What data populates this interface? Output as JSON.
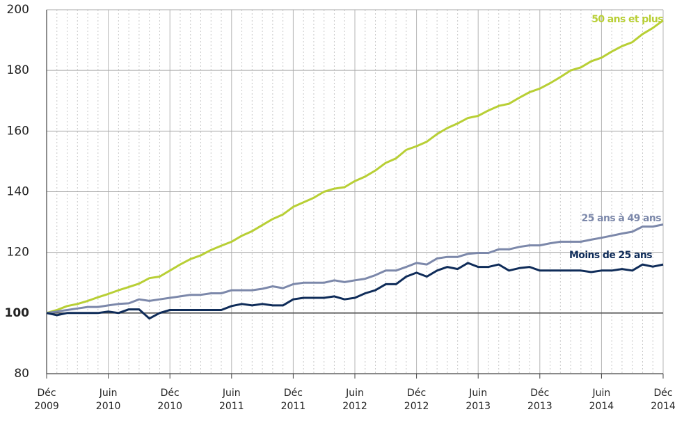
{
  "chart_data": {
    "type": "line",
    "categories": [
      "Déc 2009",
      null,
      null,
      null,
      null,
      null,
      "Juin 2010",
      null,
      null,
      null,
      null,
      null,
      "Déc 2010",
      null,
      null,
      null,
      null,
      null,
      "Juin 2011",
      null,
      null,
      null,
      null,
      null,
      "Déc 2011",
      null,
      null,
      null,
      null,
      null,
      "Juin 2012",
      null,
      null,
      null,
      null,
      null,
      "Déc 2012",
      null,
      null,
      null,
      null,
      null,
      "Juin 2013",
      null,
      null,
      null,
      null,
      null,
      "Déc 2013",
      null,
      null,
      null,
      null,
      null,
      "Juin 2014",
      null,
      null,
      null,
      null,
      null,
      "Déc 2014"
    ],
    "series": [
      {
        "name": "50 ans et plus",
        "color": "#b8cf35",
        "values": [
          100,
          101,
          102.3,
          103,
          104,
          105.2,
          106.3,
          107.5,
          108.6,
          109.7,
          111.5,
          112,
          114,
          116,
          117.8,
          119,
          120.8,
          122.2,
          123.5,
          125.5,
          127,
          129,
          131,
          132.5,
          135,
          136.5,
          138,
          140,
          141,
          141.5,
          143.5,
          145,
          147,
          149.5,
          151,
          153.8,
          155,
          156.5,
          159,
          161,
          162.5,
          164.3,
          165,
          166.8,
          168.3,
          169,
          171,
          172.8,
          174,
          175.8,
          177.8,
          180,
          181,
          183,
          184.2,
          186.2,
          188,
          189.3,
          192,
          194,
          196.5
        ]
      },
      {
        "name": "25 ans à 49 ans",
        "color": "#7c88aa",
        "values": [
          100,
          100.5,
          101,
          101.5,
          102,
          102,
          102.5,
          103,
          103.2,
          104.5,
          104,
          104.5,
          105,
          105.5,
          106,
          106,
          106.5,
          106.5,
          107.5,
          107.5,
          107.5,
          108,
          108.8,
          108.2,
          109.5,
          110,
          110,
          110,
          110.8,
          110.2,
          110.8,
          111.3,
          112.5,
          114,
          114,
          115.2,
          116.5,
          116,
          118,
          118.5,
          118.5,
          119.5,
          119.8,
          119.8,
          121,
          121,
          121.8,
          122.3,
          122.3,
          123,
          123.5,
          123.5,
          123.5,
          124.2,
          124.8,
          125.5,
          126.2,
          126.8,
          128.5,
          128.5,
          129.2
        ]
      },
      {
        "name": "Moins de 25 ans",
        "color": "#0f2c59",
        "values": [
          100,
          99.3,
          100,
          100,
          100,
          100,
          100.5,
          100,
          101.2,
          101.2,
          98.2,
          100,
          101,
          101,
          101,
          101,
          101,
          101,
          102.3,
          103,
          102.5,
          103,
          102.5,
          102.5,
          104.5,
          105,
          105,
          105,
          105.5,
          104.5,
          105,
          106.5,
          107.5,
          109.5,
          109.5,
          112,
          113.3,
          112,
          114,
          115.2,
          114.5,
          116.5,
          115.2,
          115.2,
          116,
          114,
          114.8,
          115.2,
          114,
          114,
          114,
          114,
          114,
          113.5,
          114,
          114,
          114.5,
          114,
          116,
          115.3,
          116
        ]
      }
    ],
    "ylim": [
      80,
      200
    ],
    "yticks": [
      80,
      100,
      120,
      140,
      160,
      180,
      200
    ],
    "reference_line": 100,
    "grid": true
  }
}
